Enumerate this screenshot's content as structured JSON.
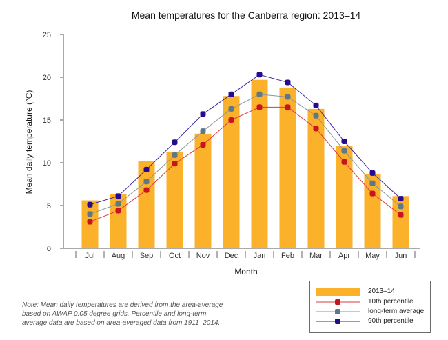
{
  "chart_data": {
    "type": "bar+line",
    "title": "Mean temperatures for the Canberra region: 2013–14",
    "xlabel": "Month",
    "ylabel": "Mean daily temperature (°C)",
    "ylim": [
      0,
      25
    ],
    "yticks": [
      0,
      5,
      10,
      15,
      20,
      25
    ],
    "grid": false,
    "legend_position": "bottom-right",
    "categories": [
      "Jul",
      "Aug",
      "Sep",
      "Oct",
      "Nov",
      "Dec",
      "Jan",
      "Feb",
      "Mar",
      "Apr",
      "May",
      "Jun"
    ],
    "bars": {
      "name": "2013–14",
      "color": "#fbb12a",
      "values": [
        5.6,
        6.3,
        10.2,
        11.3,
        13.4,
        17.8,
        19.7,
        18.8,
        16.3,
        12.0,
        8.7,
        6.1
      ]
    },
    "series": [
      {
        "name": "10th percentile",
        "color": "#c8141e",
        "line_color": "#d83c3c",
        "values": [
          3.1,
          4.4,
          6.8,
          9.9,
          12.1,
          15.0,
          16.5,
          16.5,
          14.0,
          10.1,
          6.4,
          3.9
        ]
      },
      {
        "name": "long-term average",
        "color": "#5e7886",
        "line_color": "#8a969c",
        "values": [
          4.0,
          5.2,
          7.8,
          10.9,
          13.7,
          16.3,
          18.0,
          17.7,
          15.5,
          11.4,
          7.6,
          4.9
        ]
      },
      {
        "name": "90th percentile",
        "color": "#2a0a8c",
        "line_color": "#3a2a9a",
        "values": [
          5.1,
          6.1,
          9.2,
          12.4,
          15.7,
          18.0,
          20.3,
          19.4,
          16.7,
          12.5,
          8.8,
          5.8
        ]
      }
    ]
  },
  "note": {
    "lines": [
      "Note: Mean daily temperatures are derived from the area-average",
      "based on AWAP 0.05 degree grids. Percentile and long-term",
      "average data are based on area-averaged data from 1911–2014."
    ]
  }
}
